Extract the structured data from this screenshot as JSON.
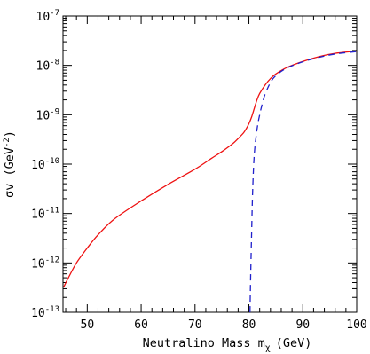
{
  "chart_data": {
    "type": "line",
    "xlabel": "Neutralino Mass m",
    "xlabel_sub": "χ",
    "xlabel_unit": "(GeV)",
    "ylabel": "σv (GeV",
    "ylabel_sup": "-2",
    "ylabel_close": ")",
    "xlim": [
      45.5,
      100
    ],
    "ylim": [
      1e-13,
      1e-07
    ],
    "y_scale": "log",
    "grid": false,
    "x_ticks": [
      {
        "value": 50,
        "label": "50"
      },
      {
        "value": 60,
        "label": "60"
      },
      {
        "value": 70,
        "label": "70"
      },
      {
        "value": 80,
        "label": "80"
      },
      {
        "value": 90,
        "label": "90"
      },
      {
        "value": 100,
        "label": "100"
      }
    ],
    "y_ticks": [
      {
        "exp": -13,
        "base": "10",
        "sup": "-13"
      },
      {
        "exp": -12,
        "base": "10",
        "sup": "-12"
      },
      {
        "exp": -11,
        "base": "10",
        "sup": "-11"
      },
      {
        "exp": -10,
        "base": "10",
        "sup": "-10"
      },
      {
        "exp": -9,
        "base": "10",
        "sup": "-9"
      },
      {
        "exp": -8,
        "base": "10",
        "sup": "-8"
      },
      {
        "exp": -7,
        "base": "10",
        "sup": "-7"
      }
    ],
    "series": [
      {
        "style": "solid",
        "color": "#ee1111",
        "x": [
          45.6,
          46.5,
          48,
          50,
          52,
          55,
          60,
          65,
          70,
          73,
          75,
          77,
          78,
          79,
          79.5,
          80,
          80.5,
          81,
          81.5,
          82,
          83,
          84,
          85,
          87,
          90,
          93,
          96,
          100
        ],
        "y": [
          3.2e-13,
          5e-13,
          1e-12,
          2e-12,
          3.7e-12,
          7.7e-12,
          1.8e-11,
          3.9e-11,
          7.9e-11,
          1.3e-10,
          1.8e-10,
          2.6e-10,
          3.3e-10,
          4.3e-10,
          5.2e-10,
          6.6e-10,
          9e-10,
          1.35e-09,
          2e-09,
          2.7e-09,
          4e-09,
          5.4e-09,
          6.7e-09,
          9e-09,
          1.2e-08,
          1.5e-08,
          1.75e-08,
          1.95e-08
        ]
      },
      {
        "style": "dashed",
        "color": "#2020cc",
        "x": [
          80.2,
          80.3,
          80.5,
          80.7,
          81,
          81.5,
          82,
          82.5,
          83,
          84,
          85,
          87,
          90,
          93,
          96,
          100
        ],
        "y": [
          1e-13,
          4e-13,
          4e-12,
          3e-11,
          1.6e-10,
          5e-10,
          1e-09,
          1.7e-09,
          2.6e-09,
          4.5e-09,
          6.2e-09,
          8.8e-09,
          1.18e-08,
          1.45e-08,
          1.7e-08,
          1.9e-08
        ]
      }
    ]
  }
}
